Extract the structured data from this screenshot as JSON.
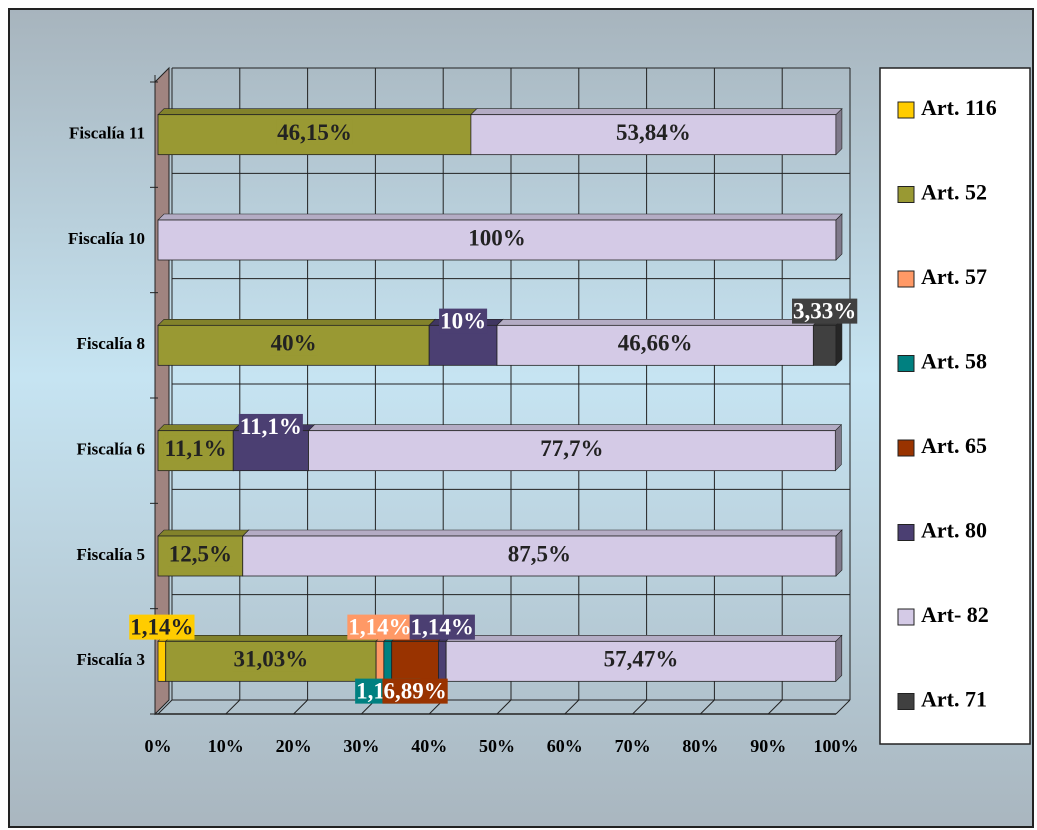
{
  "chart_data": {
    "type": "stacked-bar-horizontal",
    "categories": [
      "Fiscalía 3",
      "Fiscalía 5",
      "Fiscalía 6",
      "Fiscalía 8",
      "Fiscalía 10",
      "Fiscalía 11"
    ],
    "series": [
      {
        "name": "Art. 116",
        "color": "#ffcc00",
        "values": [
          1.14,
          null,
          null,
          null,
          null,
          null
        ],
        "value_labels": [
          "1,14%",
          null,
          null,
          null,
          null,
          null
        ]
      },
      {
        "name": "Art. 52",
        "color": "#999933",
        "values": [
          31.03,
          12.5,
          11.1,
          40,
          null,
          46.15
        ],
        "value_labels": [
          "31,03%",
          "12,5%",
          "11,1%",
          "40%",
          null,
          "46,15%"
        ]
      },
      {
        "name": "Art. 57",
        "color": "#ff9966",
        "values": [
          1.14,
          null,
          null,
          null,
          null,
          null
        ],
        "value_labels": [
          "1,14%",
          null,
          null,
          null,
          null,
          null
        ]
      },
      {
        "name": "Art. 58",
        "color": "#008080",
        "values": [
          1.16,
          null,
          null,
          null,
          null,
          null
        ],
        "value_labels": [
          "1,16%",
          null,
          null,
          null,
          null,
          null
        ]
      },
      {
        "name": "Art. 65",
        "color": "#993300",
        "values": [
          6.89,
          null,
          null,
          null,
          null,
          null
        ],
        "value_labels": [
          "6,89%",
          null,
          null,
          null,
          null,
          null
        ]
      },
      {
        "name": "Art. 80",
        "color": "#4b3f72",
        "values": [
          1.14,
          null,
          11.1,
          10,
          null,
          null
        ],
        "value_labels": [
          "1,14%",
          null,
          "11,1%",
          "10%",
          null,
          null
        ]
      },
      {
        "name": "Art- 82",
        "color": "#d4cae6",
        "values": [
          57.47,
          87.5,
          77.7,
          46.66,
          100,
          53.84
        ],
        "value_labels": [
          "57,47%",
          "87,5%",
          "77,7%",
          "46,66%",
          "100%",
          "53,84%"
        ]
      },
      {
        "name": "Art. 71",
        "color": "#404040",
        "values": [
          null,
          null,
          null,
          3.33,
          null,
          null
        ],
        "value_labels": [
          null,
          null,
          null,
          "3,33%",
          null,
          null
        ]
      }
    ],
    "xlim": [
      0,
      100
    ],
    "xticks": [
      {
        "value": 0,
        "label": "0%"
      },
      {
        "value": 10,
        "label": "10%"
      },
      {
        "value": 20,
        "label": "20%"
      },
      {
        "value": 30,
        "label": "30%"
      },
      {
        "value": 40,
        "label": "40%"
      },
      {
        "value": 50,
        "label": "50%"
      },
      {
        "value": 60,
        "label": "60%"
      },
      {
        "value": 70,
        "label": "70%"
      },
      {
        "value": 80,
        "label": "80%"
      },
      {
        "value": 90,
        "label": "90%"
      },
      {
        "value": 100,
        "label": "100%"
      }
    ],
    "grid": true,
    "legend": "right"
  }
}
